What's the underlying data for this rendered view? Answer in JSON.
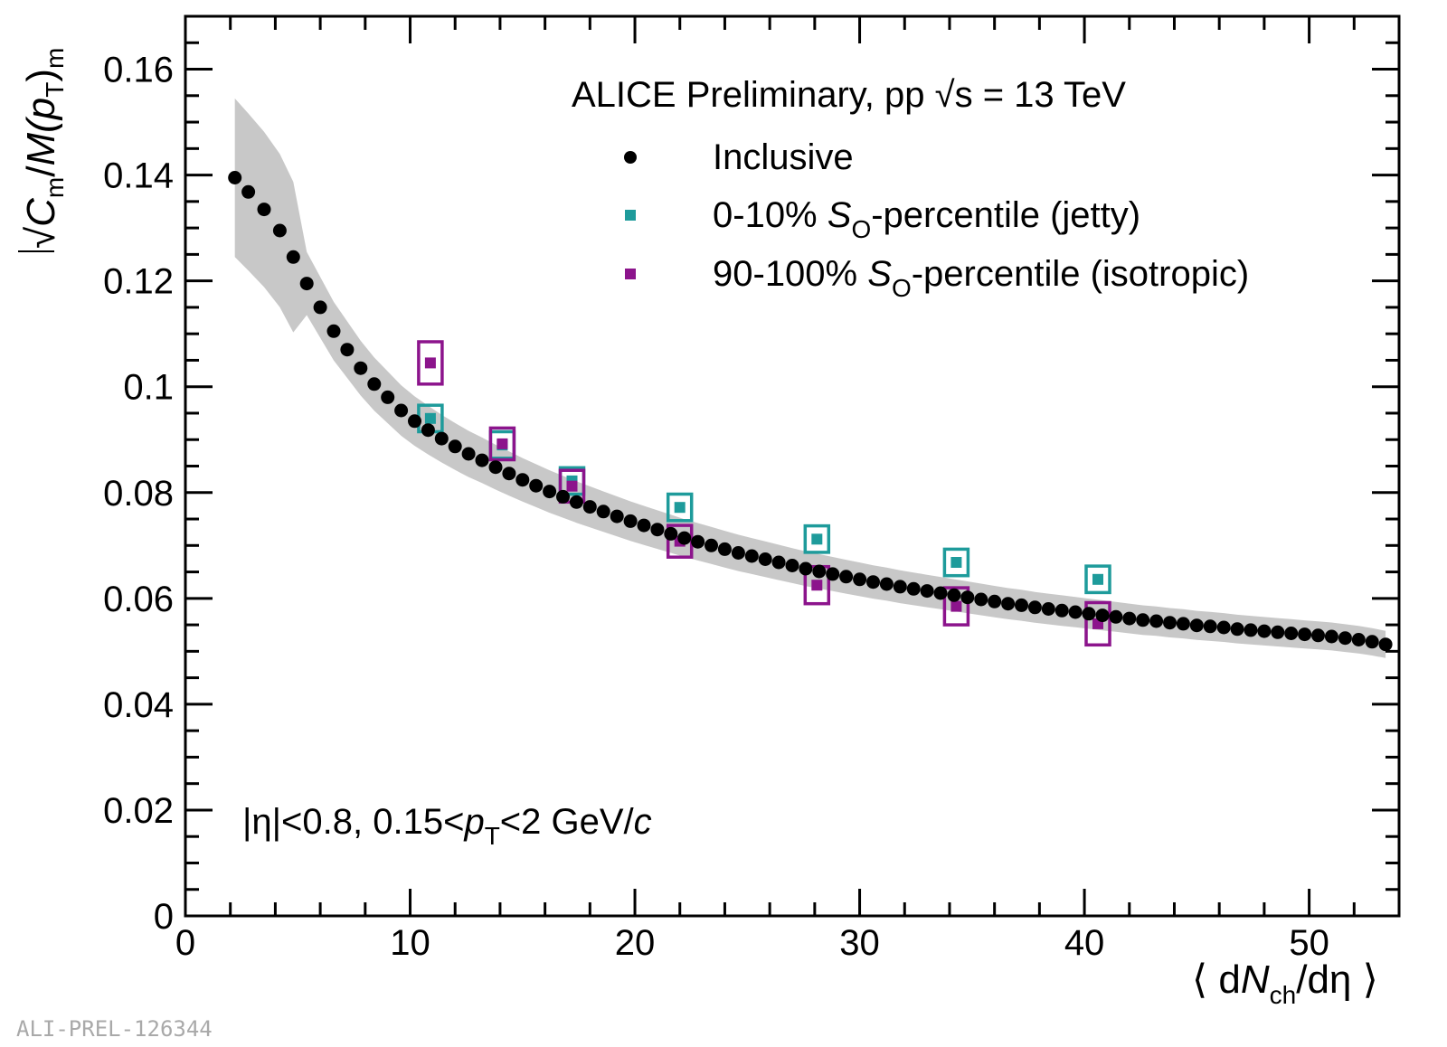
{
  "chart_data": {
    "type": "scatter",
    "title": "ALICE Preliminary, pp √s = 13 TeV",
    "xlabel": "⟨ dN_ch/dη ⟩",
    "ylabel": "√C_m / M(p_T)_m",
    "xlim": [
      0,
      54
    ],
    "ylim": [
      0,
      0.17
    ],
    "x_ticks": [
      0,
      10,
      20,
      30,
      40,
      50
    ],
    "y_ticks": [
      0,
      0.02,
      0.04,
      0.06,
      0.08,
      0.1,
      0.12,
      0.14,
      0.16
    ],
    "x_tick_labels": [
      "0",
      "10",
      "20",
      "30",
      "40",
      "50"
    ],
    "y_tick_labels": [
      "0",
      "0.02",
      "0.04",
      "0.06",
      "0.08",
      "0.1",
      "0.12",
      "0.14",
      "0.16"
    ],
    "annotation": "|η|<0.8, 0.15<p_T<2 GeV/c",
    "watermark": "ALI-PREL-126344",
    "series": [
      {
        "name": "Inclusive",
        "marker": "circle",
        "color": "#000000",
        "band_color": "#c8c8c8",
        "x": [
          2.2,
          2.8,
          3.5,
          4.2,
          4.8,
          5.4,
          6.0,
          6.6,
          7.2,
          7.8,
          8.4,
          9.0,
          9.6,
          10.2,
          10.8,
          11.4,
          12.0,
          12.6,
          13.2,
          13.8,
          14.4,
          15.0,
          15.6,
          16.2,
          16.8,
          17.4,
          18.0,
          18.6,
          19.2,
          19.8,
          20.4,
          21.0,
          21.6,
          22.2,
          22.8,
          23.4,
          24.0,
          24.6,
          25.2,
          25.8,
          26.4,
          27.0,
          27.6,
          28.2,
          28.8,
          29.4,
          30.0,
          30.6,
          31.2,
          31.8,
          32.4,
          33.0,
          33.6,
          34.2,
          34.8,
          35.4,
          36.0,
          36.6,
          37.2,
          37.8,
          38.4,
          39.0,
          39.6,
          40.2,
          40.8,
          41.4,
          42.0,
          42.6,
          43.2,
          43.8,
          44.4,
          45.0,
          45.6,
          46.2,
          46.8,
          47.4,
          48.0,
          48.6,
          49.2,
          49.8,
          50.4,
          51.0,
          51.6,
          52.2,
          52.8,
          53.4
        ],
        "y": [
          0.1395,
          0.1368,
          0.1335,
          0.1295,
          0.1245,
          0.1195,
          0.115,
          0.1105,
          0.107,
          0.1035,
          0.1005,
          0.098,
          0.0955,
          0.0935,
          0.0918,
          0.0902,
          0.0887,
          0.0873,
          0.0861,
          0.0848,
          0.0836,
          0.0824,
          0.0813,
          0.0802,
          0.0792,
          0.0782,
          0.0773,
          0.0764,
          0.0755,
          0.0746,
          0.0738,
          0.073,
          0.0722,
          0.0714,
          0.0707,
          0.07,
          0.0693,
          0.0686,
          0.068,
          0.0674,
          0.0668,
          0.0662,
          0.0656,
          0.0651,
          0.0646,
          0.0641,
          0.0636,
          0.0631,
          0.0627,
          0.0622,
          0.0618,
          0.0614,
          0.061,
          0.0606,
          0.0602,
          0.0598,
          0.0594,
          0.059,
          0.0587,
          0.0583,
          0.058,
          0.0577,
          0.0574,
          0.0571,
          0.0568,
          0.0565,
          0.0562,
          0.0559,
          0.0557,
          0.0554,
          0.0552,
          0.0549,
          0.0547,
          0.0545,
          0.0542,
          0.054,
          0.0538,
          0.0536,
          0.0534,
          0.0532,
          0.053,
          0.0528,
          0.0525,
          0.0522,
          0.0518,
          0.0513
        ],
        "syst_rel": 0.05
      },
      {
        "name": "0-10% S_O-percentile (jetty)",
        "marker": "square",
        "color": "#1e9b9b",
        "x": [
          10.9,
          14.1,
          17.2,
          22.0,
          28.1,
          34.3,
          40.6
        ],
        "y": [
          0.094,
          0.089,
          0.0822,
          0.0772,
          0.0712,
          0.0668,
          0.0636
        ],
        "syst": [
          0.0025,
          0.0025,
          0.0025,
          0.0025,
          0.0025,
          0.0025,
          0.0025
        ]
      },
      {
        "name": "90-100% S_O-percentile (isotropic)",
        "marker": "square",
        "color": "#8c148c",
        "x": [
          10.9,
          14.1,
          17.2,
          22.0,
          28.1,
          34.3,
          40.6
        ],
        "y": [
          0.1045,
          0.0892,
          0.0812,
          0.0708,
          0.0625,
          0.0585,
          0.0552
        ],
        "syst": [
          0.004,
          0.003,
          0.003,
          0.003,
          0.0035,
          0.0035,
          0.004
        ]
      }
    ]
  },
  "legend": {
    "header": "ALICE Preliminary, pp √s = 13 TeV",
    "inclusive": "Inclusive",
    "jetty_prefix": "0-10%",
    "jetty_suffix": "-percentile (jetty)",
    "iso_prefix": "90-100%",
    "iso_suffix": "-percentile (isotropic)",
    "s": "S",
    "sub_o": "O"
  },
  "axis": {
    "y_root": "√",
    "y_c": "C",
    "y_sub_m": "m",
    "y_slash": "/",
    "y_m": "M(",
    "y_p": "p",
    "y_sub_t": "T",
    "y_close": ")",
    "x_open": "⟨ d",
    "x_n": "N",
    "x_sub_ch": "ch",
    "x_close": "/dη ⟩"
  },
  "annotation_parts": {
    "pre": "|η|<0.8, 0.15<",
    "p": "p",
    "sub_t": "T",
    "post": "<2 GeV/",
    "c": "c"
  },
  "watermark": "ALI-PREL-126344"
}
